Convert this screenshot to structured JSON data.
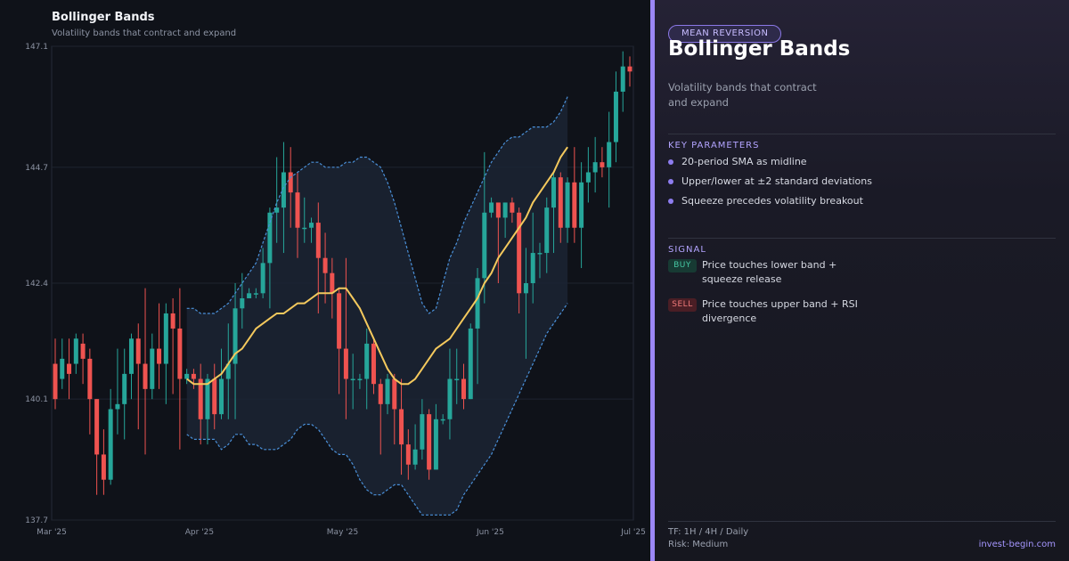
{
  "chart_data": {
    "type": "candlestick",
    "title": "Bollinger Bands",
    "subtitle": "Volatility bands that contract and expand",
    "y_ticks": [
      137.7,
      140.1,
      142.4,
      144.7,
      147.1
    ],
    "ylim": [
      137.7,
      147.1
    ],
    "x_ticks": [
      {
        "label": "Mar '25",
        "day": 0
      },
      {
        "label": "Apr '25",
        "day": 31
      },
      {
        "label": "May '25",
        "day": 61
      },
      {
        "label": "Jun '25",
        "day": 92
      },
      {
        "label": "Jul '25",
        "day": 122
      }
    ],
    "candles": [
      [
        140.8,
        140.1,
        141.3,
        139.9
      ],
      [
        140.5,
        140.9,
        141.3,
        140.3
      ],
      [
        140.8,
        140.6,
        141.3,
        140.1
      ],
      [
        140.8,
        141.3,
        141.4,
        140.6
      ],
      [
        141.2,
        140.9,
        141.4,
        140.4
      ],
      [
        140.9,
        140.1,
        141.1,
        139.4
      ],
      [
        140.1,
        139.0,
        140.1,
        138.2
      ],
      [
        139.0,
        138.5,
        139.5,
        138.2
      ],
      [
        138.5,
        139.9,
        140.3,
        138.4
      ],
      [
        139.9,
        140.0,
        141.1,
        139.4
      ],
      [
        140.0,
        140.6,
        141.1,
        139.3
      ],
      [
        140.6,
        141.3,
        141.4,
        140.1
      ],
      [
        141.3,
        140.8,
        141.6,
        139.5
      ],
      [
        140.8,
        140.3,
        142.3,
        139.0
      ],
      [
        140.3,
        141.1,
        141.4,
        140.1
      ],
      [
        141.1,
        140.8,
        142.0,
        140.3
      ],
      [
        140.8,
        141.8,
        142.0,
        140.0
      ],
      [
        141.8,
        141.5,
        142.1,
        140.2
      ],
      [
        141.5,
        140.5,
        142.3,
        139.1
      ],
      [
        140.5,
        140.6,
        140.7,
        140.4
      ],
      [
        140.6,
        140.5,
        140.7,
        140.3
      ],
      [
        140.5,
        139.7,
        140.8,
        139.2
      ],
      [
        139.7,
        140.5,
        140.6,
        139.2
      ],
      [
        140.5,
        139.8,
        140.8,
        139.5
      ],
      [
        139.8,
        140.5,
        141.1,
        139.7
      ],
      [
        140.5,
        140.8,
        141.6,
        139.7
      ],
      [
        140.8,
        141.9,
        142.4,
        139.7
      ],
      [
        141.9,
        142.1,
        142.6,
        141.5
      ],
      [
        142.1,
        142.2,
        142.3,
        142.1
      ],
      [
        142.2,
        142.2,
        142.3,
        142.1
      ],
      [
        142.2,
        142.8,
        143.1,
        142.1
      ],
      [
        142.8,
        143.8,
        143.9,
        141.9
      ],
      [
        143.8,
        143.9,
        144.9,
        143.2
      ],
      [
        143.9,
        144.6,
        145.2,
        143.0
      ],
      [
        144.6,
        144.2,
        145.1,
        143.5
      ],
      [
        144.2,
        143.5,
        144.6,
        142.9
      ],
      [
        143.5,
        143.5,
        144.1,
        143.2
      ],
      [
        143.5,
        143.6,
        143.7,
        143.2
      ],
      [
        143.6,
        142.9,
        144.0,
        141.8
      ],
      [
        142.9,
        142.6,
        143.4,
        142.0
      ],
      [
        142.6,
        142.2,
        142.9,
        141.7
      ],
      [
        142.2,
        141.1,
        142.3,
        140.2
      ],
      [
        141.1,
        140.5,
        142.9,
        139.7
      ],
      [
        140.5,
        140.5,
        141.0,
        139.9
      ],
      [
        140.5,
        140.5,
        140.6,
        140.3
      ],
      [
        140.5,
        141.2,
        141.5,
        139.9
      ],
      [
        141.2,
        140.4,
        141.3,
        140.2
      ],
      [
        140.4,
        140.0,
        140.5,
        139.0
      ],
      [
        140.0,
        140.5,
        140.6,
        139.8
      ],
      [
        140.5,
        139.9,
        140.6,
        139.2
      ],
      [
        139.9,
        139.2,
        140.5,
        138.6
      ],
      [
        139.2,
        138.8,
        139.5,
        138.5
      ],
      [
        138.8,
        139.1,
        139.6,
        138.7
      ],
      [
        139.1,
        139.8,
        140.1,
        138.9
      ],
      [
        139.8,
        138.7,
        139.9,
        138.5
      ],
      [
        138.7,
        139.7,
        140.0,
        138.7
      ],
      [
        139.7,
        139.7,
        139.8,
        139.6
      ],
      [
        139.7,
        140.5,
        141.1,
        139.3
      ],
      [
        140.5,
        140.5,
        141.1,
        140.0
      ],
      [
        140.5,
        140.1,
        140.8,
        139.9
      ],
      [
        140.1,
        141.5,
        141.6,
        140.1
      ],
      [
        141.5,
        142.5,
        142.7,
        140.4
      ],
      [
        142.5,
        143.8,
        145.0,
        142.0
      ],
      [
        143.8,
        144.0,
        144.1,
        143.7
      ],
      [
        144.0,
        143.7,
        143.9,
        142.4
      ],
      [
        143.7,
        144.0,
        144.0,
        143.3
      ],
      [
        144.0,
        143.8,
        144.1,
        143.6
      ],
      [
        143.8,
        142.2,
        143.9,
        141.8
      ],
      [
        142.2,
        142.4,
        143.1,
        140.9
      ],
      [
        142.4,
        143.0,
        143.8,
        142.0
      ],
      [
        143.0,
        143.0,
        143.2,
        142.5
      ],
      [
        143.0,
        143.9,
        144.1,
        142.6
      ],
      [
        143.9,
        144.5,
        144.6,
        143.0
      ],
      [
        144.5,
        143.5,
        144.6,
        143.2
      ],
      [
        143.5,
        144.4,
        144.5,
        143.2
      ],
      [
        144.4,
        143.5,
        145.1,
        143.2
      ],
      [
        143.5,
        144.4,
        144.8,
        142.7
      ],
      [
        144.4,
        144.6,
        145.1,
        144.0
      ],
      [
        144.6,
        144.8,
        145.3,
        144.2
      ],
      [
        144.8,
        144.7,
        145.1,
        144.5
      ],
      [
        144.7,
        145.2,
        145.8,
        143.9
      ],
      [
        145.2,
        146.2,
        146.6,
        144.8
      ],
      [
        146.2,
        146.7,
        147.0,
        145.8
      ],
      [
        146.7,
        146.6,
        146.9,
        146.3
      ]
    ],
    "bands": {
      "start_index": 19,
      "upper": [
        141.9,
        141.9,
        141.8,
        141.8,
        141.8,
        141.9,
        142.0,
        142.2,
        142.4,
        142.6,
        142.8,
        143.2,
        143.6,
        144.0,
        144.3,
        144.5,
        144.6,
        144.7,
        144.8,
        144.8,
        144.7,
        144.7,
        144.7,
        144.8,
        144.8,
        144.9,
        144.9,
        144.8,
        144.7,
        144.4,
        144.0,
        143.5,
        143.0,
        142.5,
        142.0,
        141.8,
        141.9,
        142.4,
        142.9,
        143.2,
        143.6,
        143.9,
        144.2,
        144.5,
        144.8,
        145.0,
        145.2,
        145.3,
        145.3,
        145.4,
        145.5,
        145.5,
        145.5,
        145.6,
        145.8,
        146.1
      ],
      "middle": [
        140.5,
        140.4,
        140.4,
        140.4,
        140.5,
        140.6,
        140.8,
        141.0,
        141.1,
        141.3,
        141.5,
        141.6,
        141.7,
        141.8,
        141.8,
        141.9,
        142.0,
        142.0,
        142.1,
        142.2,
        142.2,
        142.2,
        142.3,
        142.3,
        142.1,
        141.9,
        141.6,
        141.3,
        141.0,
        140.7,
        140.5,
        140.4,
        140.4,
        140.5,
        140.7,
        140.9,
        141.1,
        141.2,
        141.3,
        141.5,
        141.7,
        141.9,
        142.1,
        142.4,
        142.6,
        142.9,
        143.1,
        143.3,
        143.5,
        143.7,
        144.0,
        144.2,
        144.4,
        144.6,
        144.9,
        145.1
      ],
      "lower": [
        139.4,
        139.3,
        139.3,
        139.3,
        139.3,
        139.1,
        139.2,
        139.4,
        139.4,
        139.2,
        139.2,
        139.1,
        139.1,
        139.1,
        139.2,
        139.3,
        139.5,
        139.6,
        139.6,
        139.5,
        139.3,
        139.1,
        139.0,
        139.0,
        138.8,
        138.5,
        138.3,
        138.2,
        138.2,
        138.3,
        138.4,
        138.4,
        138.2,
        138.0,
        137.8,
        137.8,
        137.8,
        137.8,
        137.8,
        137.9,
        138.2,
        138.4,
        138.6,
        138.8,
        139.0,
        139.3,
        139.6,
        139.9,
        140.2,
        140.5,
        140.8,
        141.1,
        141.4,
        141.6,
        141.8,
        142.0
      ]
    },
    "colors": {
      "up": "#26a69a",
      "down": "#ef5350",
      "middle_band": "#f4c95d",
      "outer_band": "#4a90d9",
      "band_fill": "#1b2434"
    },
    "grid": true
  },
  "sidebar": {
    "badge": "MEAN REVERSION",
    "title": "Bollinger Bands",
    "description": "Volatility bands that contract and expand",
    "key_parameters_label": "KEY PARAMETERS",
    "parameters": [
      "20-period SMA as midline",
      "Upper/lower at ±2 standard deviations",
      "Squeeze precedes volatility breakout"
    ],
    "signal_label": "SIGNAL",
    "signals": [
      {
        "tag": "BUY",
        "text": "Price touches lower band + squeeze release"
      },
      {
        "tag": "SELL",
        "text": "Price touches upper band + RSI divergence"
      }
    ],
    "timeframe": "TF: 1H / 4H / Daily",
    "risk": "Risk: Medium",
    "brand": "invest-begin.com"
  }
}
